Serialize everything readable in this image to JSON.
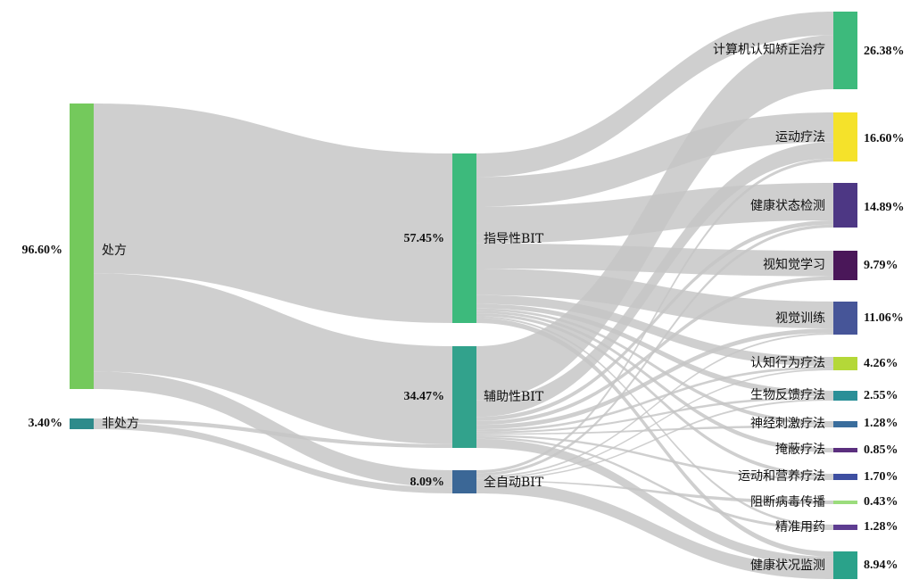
{
  "chart_data": {
    "type": "sankey",
    "colors": {
      "link": "#c4c4c4",
      "green": "#74c95c",
      "teal": "#2e8b8b",
      "mint": "#3dba7c",
      "seagreen": "#32a28c",
      "steelblue": "#3b6796",
      "yellow": "#f5e22a",
      "purple": "#4d3784",
      "darkpurple": "#4a1759",
      "slate": "#465598",
      "lime": "#b4d838",
      "cyan": "#2a8f97",
      "blue": "#3a6d9c",
      "violet": "#5b2f7e",
      "indigo": "#3e4fa1",
      "lightgreen": "#9bdc7c",
      "deepviolet": "#5e3d91",
      "turquoise": "#2aa28a"
    },
    "nodes": [
      {
        "id": "rx",
        "label": "处方",
        "value": "96.60%",
        "color": "#74c95c",
        "col": 0
      },
      {
        "id": "nonrx",
        "label": "非处方",
        "value": "3.40%",
        "color": "#2e8b8b",
        "col": 0
      },
      {
        "id": "guide",
        "label": "指导性BIT",
        "value": "57.45%",
        "color": "#3dba7c",
        "col": 1
      },
      {
        "id": "assist",
        "label": "辅助性BIT",
        "value": "34.47%",
        "color": "#32a28c",
        "col": 1
      },
      {
        "id": "auto",
        "label": "全自动BIT",
        "value": "8.09%",
        "color": "#3b6796",
        "col": 1
      },
      {
        "id": "cct",
        "label": "计算机认知矫正治疗",
        "value": "26.38%",
        "color": "#3dba7c",
        "col": 2
      },
      {
        "id": "exercise",
        "label": "运动疗法",
        "value": "16.60%",
        "color": "#f5e22a",
        "col": 2
      },
      {
        "id": "healthcheck",
        "label": "健康状态检测",
        "value": "14.89%",
        "color": "#4d3784",
        "col": 2
      },
      {
        "id": "perceptual",
        "label": "视知觉学习",
        "value": "9.79%",
        "color": "#4a1759",
        "col": 2
      },
      {
        "id": "visual",
        "label": "视觉训练",
        "value": "11.06%",
        "color": "#465598",
        "col": 2
      },
      {
        "id": "cbt",
        "label": "认知行为疗法",
        "value": "4.26%",
        "color": "#b4d838",
        "col": 2
      },
      {
        "id": "biofeedback",
        "label": "生物反馈疗法",
        "value": "2.55%",
        "color": "#2a8f97",
        "col": 2
      },
      {
        "id": "neurostim",
        "label": "神经刺激疗法",
        "value": "1.28%",
        "color": "#3a6d9c",
        "col": 2
      },
      {
        "id": "occlusion",
        "label": "掩蔽疗法",
        "value": "0.85%",
        "color": "#5b2f7e",
        "col": 2
      },
      {
        "id": "nutrition",
        "label": "运动和营养疗法",
        "value": "1.70%",
        "color": "#3e4fa1",
        "col": 2
      },
      {
        "id": "block",
        "label": "阻断病毒传播",
        "value": "0.43%",
        "color": "#9bdc7c",
        "col": 2
      },
      {
        "id": "precision",
        "label": "精准用药",
        "value": "1.28%",
        "color": "#5e3d91",
        "col": 2
      },
      {
        "id": "monitor",
        "label": "健康状况监测",
        "value": "8.94%",
        "color": "#2aa28a",
        "col": 2
      }
    ],
    "links": [
      {
        "source": "rx",
        "target": "guide",
        "value": 57.45
      },
      {
        "source": "rx",
        "target": "assist",
        "value": 33.2
      },
      {
        "source": "rx",
        "target": "auto",
        "value": 5.95
      },
      {
        "source": "nonrx",
        "target": "assist",
        "value": 1.27
      },
      {
        "source": "nonrx",
        "target": "auto",
        "value": 2.13
      },
      {
        "source": "guide",
        "target": "cct",
        "value": 8.0
      },
      {
        "source": "guide",
        "target": "exercise",
        "value": 10.0
      },
      {
        "source": "guide",
        "target": "healthcheck",
        "value": 12.5
      },
      {
        "source": "guide",
        "target": "perceptual",
        "value": 8.5
      },
      {
        "source": "guide",
        "target": "visual",
        "value": 9.0
      },
      {
        "source": "guide",
        "target": "cbt",
        "value": 3.0
      },
      {
        "source": "guide",
        "target": "biofeedback",
        "value": 1.5
      },
      {
        "source": "guide",
        "target": "neurostim",
        "value": 0.8
      },
      {
        "source": "guide",
        "target": "occlusion",
        "value": 0.85
      },
      {
        "source": "guide",
        "target": "nutrition",
        "value": 1.0
      },
      {
        "source": "guide",
        "target": "precision",
        "value": 0.6
      },
      {
        "source": "guide",
        "target": "monitor",
        "value": 1.7
      },
      {
        "source": "assist",
        "target": "cct",
        "value": 18.38
      },
      {
        "source": "assist",
        "target": "exercise",
        "value": 5.6
      },
      {
        "source": "assist",
        "target": "healthcheck",
        "value": 1.39
      },
      {
        "source": "assist",
        "target": "perceptual",
        "value": 1.29
      },
      {
        "source": "assist",
        "target": "visual",
        "value": 1.5
      },
      {
        "source": "assist",
        "target": "cbt",
        "value": 0.8
      },
      {
        "source": "assist",
        "target": "biofeedback",
        "value": 0.6
      },
      {
        "source": "assist",
        "target": "neurostim",
        "value": 0.48
      },
      {
        "source": "assist",
        "target": "nutrition",
        "value": 0.7
      },
      {
        "source": "assist",
        "target": "precision",
        "value": 0.68
      },
      {
        "source": "assist",
        "target": "monitor",
        "value": 3.05
      },
      {
        "source": "auto",
        "target": "exercise",
        "value": 1.0
      },
      {
        "source": "auto",
        "target": "healthcheck",
        "value": 1.0
      },
      {
        "source": "auto",
        "target": "visual",
        "value": 0.56
      },
      {
        "source": "auto",
        "target": "cbt",
        "value": 0.46
      },
      {
        "source": "auto",
        "target": "biofeedback",
        "value": 0.45
      },
      {
        "source": "auto",
        "target": "block",
        "value": 0.43
      },
      {
        "source": "auto",
        "target": "monitor",
        "value": 4.19
      }
    ]
  }
}
